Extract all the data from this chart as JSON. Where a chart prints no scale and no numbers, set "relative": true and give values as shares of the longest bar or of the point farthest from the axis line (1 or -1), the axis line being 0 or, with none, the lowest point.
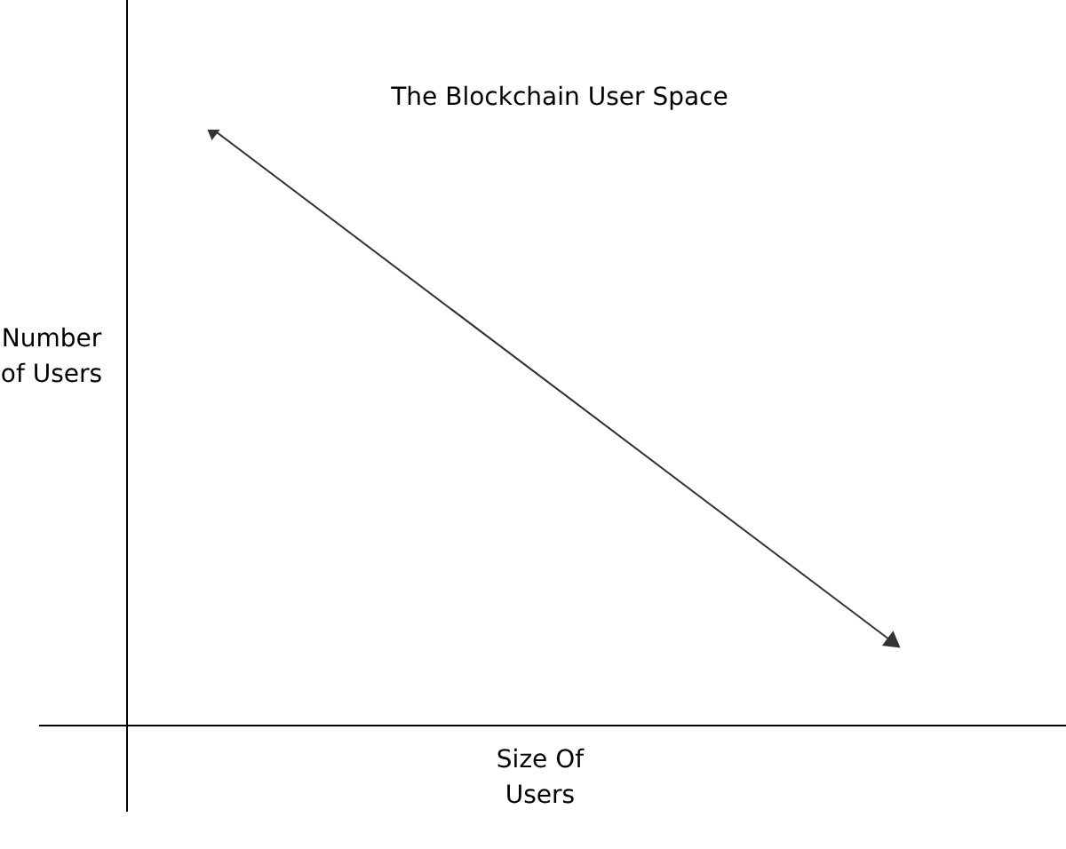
{
  "chart_data": {
    "type": "line",
    "title": "The Blockchain User Space",
    "xlabel": "Size Of Users",
    "ylabel": "Number of Users",
    "categories": [
      null,
      null
    ],
    "values": [
      1,
      0.14
    ],
    "color": "#333333",
    "relative": true,
    "marker": "triangle"
  }
}
